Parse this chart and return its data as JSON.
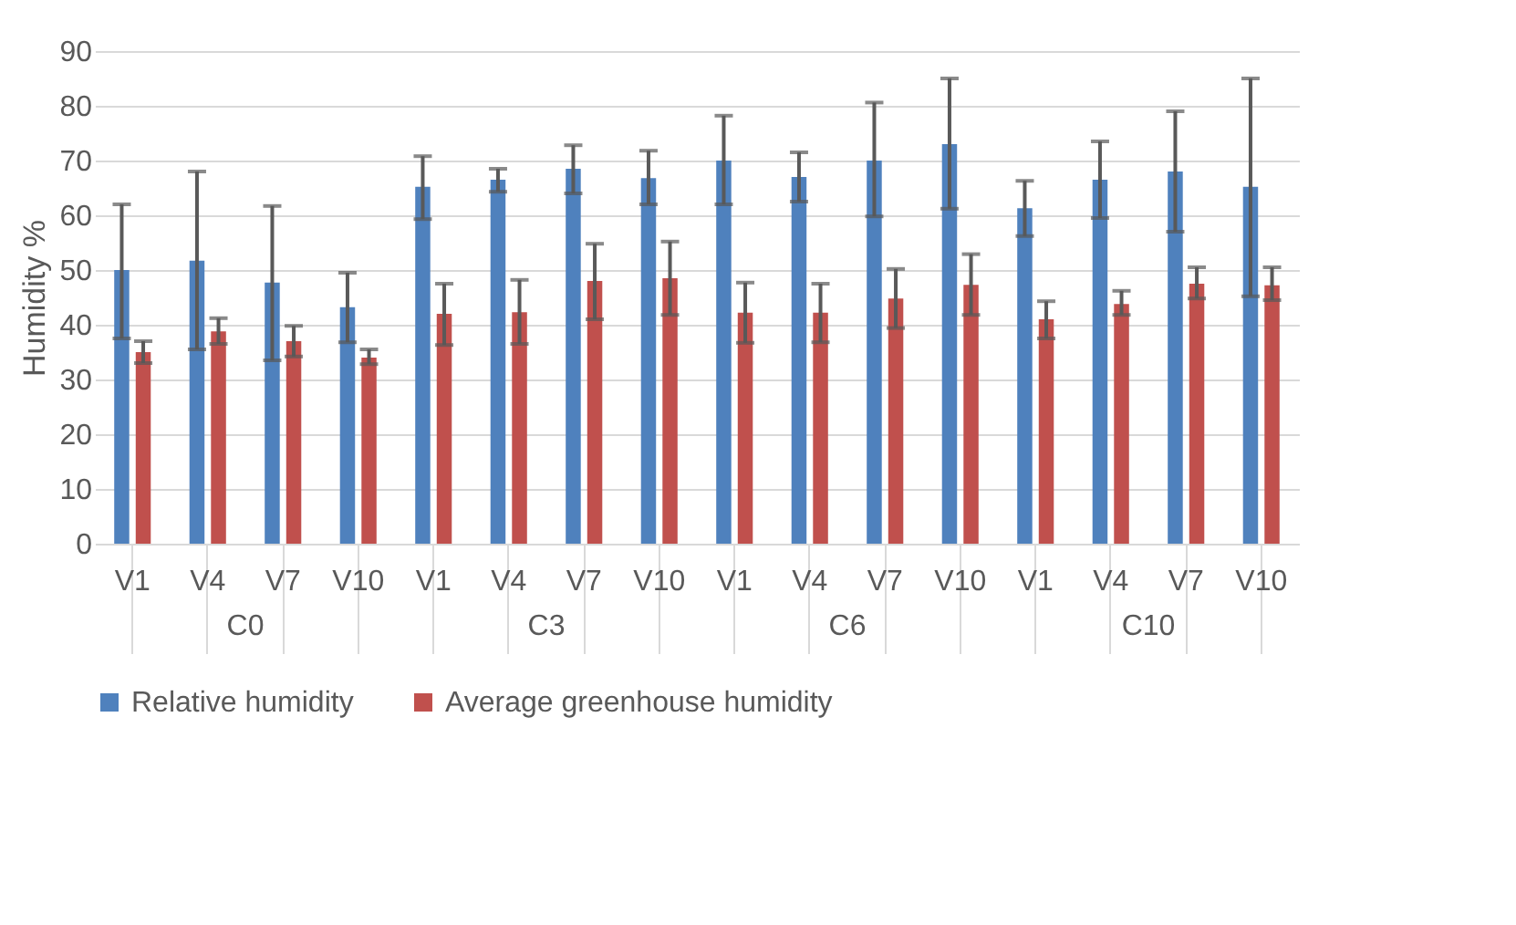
{
  "chart_data": {
    "type": "bar",
    "ylabel": "Humidity %",
    "categories": [
      "V1",
      "V4",
      "V7",
      "V10",
      "V1",
      "V4",
      "V7",
      "V10",
      "V1",
      "V4",
      "V7",
      "V10",
      "V1",
      "V4",
      "V7",
      "V10"
    ],
    "annotations": [
      "C0",
      "C3",
      "C6",
      "C10"
    ],
    "series": [
      {
        "name": "Relative humidity",
        "color": "#4f81bd",
        "values": [
          50,
          51.7,
          47.7,
          43.2,
          65.2,
          66.5,
          68.5,
          66.8,
          70,
          67,
          70,
          73,
          61.3,
          66.5,
          68,
          65.2
        ],
        "errors": [
          [
            37.5,
            62
          ],
          [
            35.5,
            68
          ],
          [
            33.5,
            61.7
          ],
          [
            36.8,
            49.5
          ],
          [
            59.3,
            70.8
          ],
          [
            64.3,
            68.5
          ],
          [
            64,
            72.8
          ],
          [
            62,
            71.8
          ],
          [
            62,
            78.2
          ],
          [
            62.5,
            71.5
          ],
          [
            59.8,
            80.6
          ],
          [
            61.2,
            85
          ],
          [
            56.2,
            66.3
          ],
          [
            59.5,
            73.5
          ],
          [
            57,
            79
          ],
          [
            45.2,
            85
          ]
        ]
      },
      {
        "name": "Average greenhouse humidity",
        "color": "#c0504d",
        "values": [
          35,
          38.8,
          37,
          34,
          42,
          42.3,
          48,
          48.5,
          42.2,
          42.2,
          44.8,
          47.3,
          41,
          43.8,
          47.5,
          47.2
        ],
        "errors": [
          [
            33,
            37
          ],
          [
            36.5,
            41.2
          ],
          [
            34.2,
            39.8
          ],
          [
            32.8,
            35.5
          ],
          [
            36.3,
            47.5
          ],
          [
            36.5,
            48.2
          ],
          [
            41,
            54.8
          ],
          [
            41.8,
            55.2
          ],
          [
            36.7,
            47.7
          ],
          [
            36.8,
            47.5
          ],
          [
            39.4,
            50.2
          ],
          [
            41.8,
            52.9
          ],
          [
            37.5,
            44.3
          ],
          [
            41.8,
            46.2
          ],
          [
            44.8,
            50.5
          ],
          [
            44.5,
            50.5
          ]
        ]
      }
    ],
    "ylim": [
      0,
      90
    ],
    "yticks": [
      0,
      10,
      20,
      30,
      40,
      50,
      60,
      70,
      80,
      90
    ],
    "grid": "y",
    "legend": "bottom"
  }
}
